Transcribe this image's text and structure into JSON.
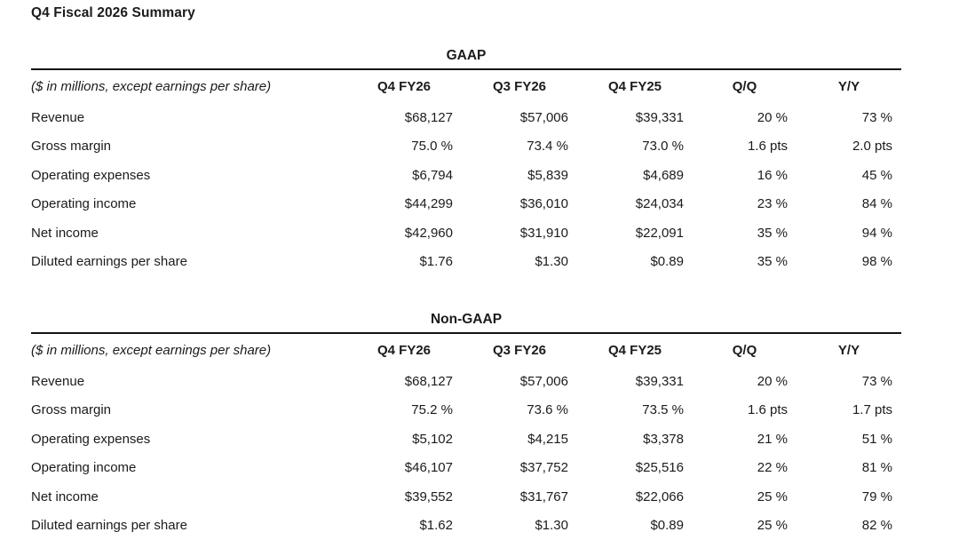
{
  "page_title": "Q4 Fiscal 2026 Summary",
  "tables": [
    {
      "title": "GAAP",
      "unit_note": "($ in millions, except earnings per share)",
      "columns": [
        "Q4 FY26",
        "Q3 FY26",
        "Q4 FY25",
        "Q/Q",
        "Y/Y"
      ],
      "rows": [
        {
          "label": "Revenue",
          "values": [
            "$68,127",
            "$57,006",
            "$39,331",
            "20 %",
            "73 %"
          ]
        },
        {
          "label": "Gross margin",
          "values": [
            "75.0 %",
            "73.4 %",
            "73.0 %",
            "1.6 pts",
            "2.0 pts"
          ]
        },
        {
          "label": "Operating expenses",
          "values": [
            "$6,794",
            "$5,839",
            "$4,689",
            "16 %",
            "45 %"
          ]
        },
        {
          "label": "Operating income",
          "values": [
            "$44,299",
            "$36,010",
            "$24,034",
            "23 %",
            "84 %"
          ]
        },
        {
          "label": "Net income",
          "values": [
            "$42,960",
            "$31,910",
            "$22,091",
            "35 %",
            "94 %"
          ]
        },
        {
          "label": "Diluted earnings per share",
          "values": [
            "$1.76",
            "$1.30",
            "$0.89",
            "35 %",
            "98 %"
          ]
        }
      ]
    },
    {
      "title": "Non-GAAP",
      "unit_note": "($ in millions, except earnings per share)",
      "columns": [
        "Q4 FY26",
        "Q3 FY26",
        "Q4 FY25",
        "Q/Q",
        "Y/Y"
      ],
      "rows": [
        {
          "label": "Revenue",
          "values": [
            "$68,127",
            "$57,006",
            "$39,331",
            "20 %",
            "73 %"
          ]
        },
        {
          "label": "Gross margin",
          "values": [
            "75.2 %",
            "73.6 %",
            "73.5 %",
            "1.6 pts",
            "1.7 pts"
          ]
        },
        {
          "label": "Operating expenses",
          "values": [
            "$5,102",
            "$4,215",
            "$3,378",
            "21 %",
            "51 %"
          ]
        },
        {
          "label": "Operating income",
          "values": [
            "$46,107",
            "$37,752",
            "$25,516",
            "22 %",
            "81 %"
          ]
        },
        {
          "label": "Net income",
          "values": [
            "$39,552",
            "$31,767",
            "$22,066",
            "25 %",
            "79 %"
          ]
        },
        {
          "label": "Diluted earnings per share",
          "values": [
            "$1.62",
            "$1.30",
            "$0.89",
            "25 %",
            "82 %"
          ]
        }
      ]
    }
  ],
  "text_color": "#1b1b1b"
}
